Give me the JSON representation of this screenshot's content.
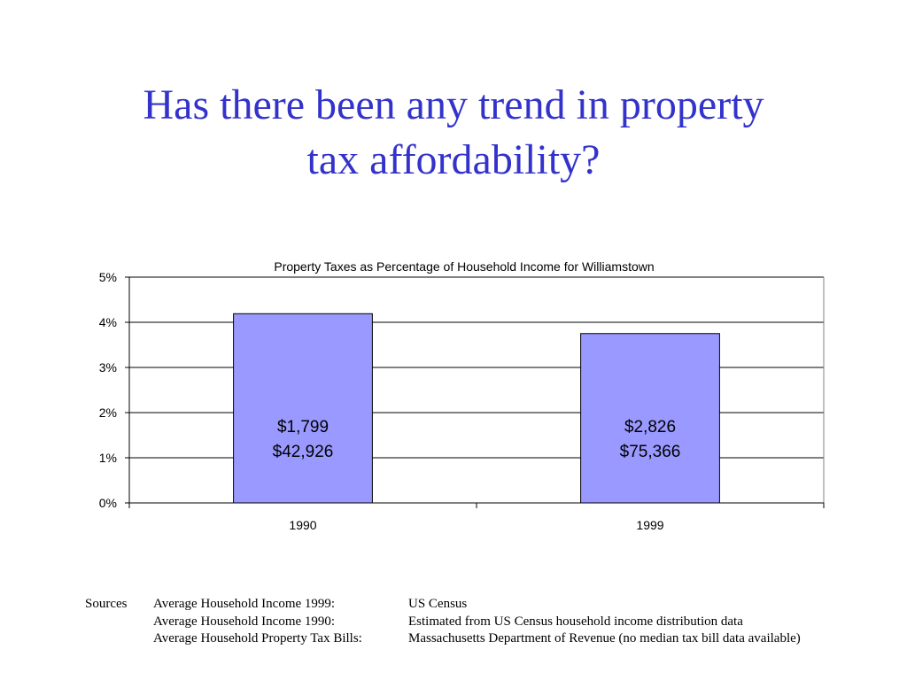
{
  "slide": {
    "title_line1": "Has there been any trend in property",
    "title_line2": "tax affordability?",
    "title_color": "#3333cc"
  },
  "chart_data": {
    "type": "bar",
    "title": "Property Taxes  as Percentage of Household Income for Williamstown",
    "categories": [
      "1990",
      "1999"
    ],
    "values": [
      4.19,
      3.75
    ],
    "value_unit": "%",
    "bar_labels": [
      [
        "$1,799",
        "$42,926"
      ],
      [
        "$2,826",
        "$75,366"
      ]
    ],
    "ylim": [
      0,
      5
    ],
    "yticks": [
      0,
      1,
      2,
      3,
      4,
      5
    ],
    "ytick_labels": [
      "0%",
      "1%",
      "2%",
      "3%",
      "4%",
      "5%"
    ],
    "xlabel": "",
    "ylabel": "",
    "grid": true,
    "bar_color": "#9999ff",
    "legend": "none"
  },
  "sources": {
    "label": "Sources",
    "rows": [
      {
        "item": "Average Household Income 1999:",
        "source": "US Census"
      },
      {
        "item": "Average Household Income 1990:",
        "source": "Estimated from US Census household income distribution data"
      },
      {
        "item": "Average Household Property Tax Bills:",
        "source": "Massachusetts Department of Revenue (no median tax bill data available)"
      }
    ]
  }
}
